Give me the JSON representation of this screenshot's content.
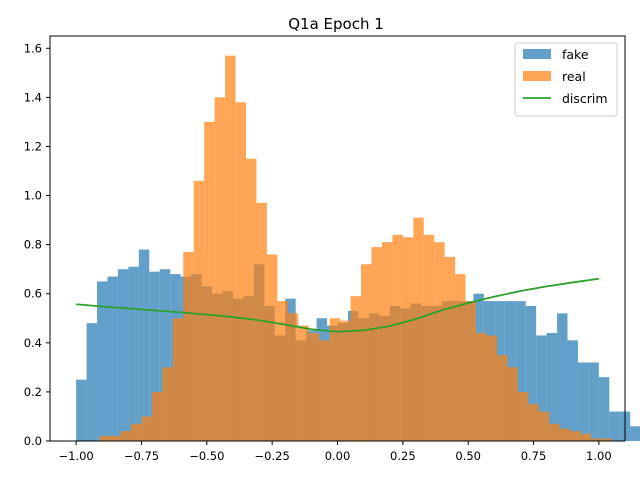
{
  "chart_data": {
    "type": "bar",
    "title": "Q1a Epoch 1",
    "xlabel": "",
    "ylabel": "",
    "xlim": [
      -1.1,
      1.1
    ],
    "ylim": [
      0,
      1.65
    ],
    "x_ticks": [
      -1.0,
      -0.75,
      -0.5,
      -0.25,
      0.0,
      0.25,
      0.5,
      0.75,
      1.0
    ],
    "x_tick_labels": [
      "−1.00",
      "−0.75",
      "−0.50",
      "−0.25",
      "0.00",
      "0.25",
      "0.50",
      "0.75",
      "1.00"
    ],
    "y_ticks": [
      0.0,
      0.2,
      0.4,
      0.6,
      0.8,
      1.0,
      1.2,
      1.4,
      1.6
    ],
    "y_tick_labels": [
      "0.0",
      "0.2",
      "0.4",
      "0.6",
      "0.8",
      "1.0",
      "1.2",
      "1.4",
      "1.6"
    ],
    "grid": false,
    "legend": {
      "location": "upper right"
    },
    "series": [
      {
        "name": "fake",
        "type": "histogram",
        "color": "#1f77b4",
        "alpha": 0.7,
        "bin_start": -1.0,
        "bin_width": 0.04,
        "values": [
          0.25,
          0.48,
          0.65,
          0.67,
          0.7,
          0.71,
          0.78,
          0.69,
          0.7,
          0.68,
          0.67,
          0.68,
          0.63,
          0.6,
          0.61,
          0.58,
          0.59,
          0.72,
          0.55,
          0.43,
          0.58,
          0.41,
          0.45,
          0.5,
          0.47,
          0.48,
          0.53,
          0.5,
          0.52,
          0.51,
          0.55,
          0.54,
          0.56,
          0.55,
          0.54,
          0.55,
          0.57,
          0.57,
          0.57,
          0.58,
          0.53,
          0.49,
          0.54,
          0.43,
          0.5,
          0.58,
          0.41,
          0.51,
          0.43,
          0.5,
          0.5,
          0.22,
          0.22,
          0.12,
          0.12,
          0.06,
          0.07,
          0.01,
          0.01,
          0.01
        ],
        "bin_overrides": {
          "34": 0.55,
          "35": 0.57,
          "36": 0.57,
          "37": 0.57,
          "38": 0.6,
          "39": 0.57,
          "40": 0.57,
          "41": 0.57,
          "42": 0.57,
          "43": 0.55,
          "44": 0.43,
          "45": 0.44,
          "46": 0.52,
          "47": 0.41,
          "48": 0.32,
          "49": 0.32,
          "50": 0.26,
          "51": 0.12,
          "52": 0.12,
          "53": 0.06,
          "54": 0.03,
          "55": 0.01
        }
      },
      {
        "name": "real",
        "type": "histogram",
        "color": "#ff7f0e",
        "alpha": 0.7,
        "bin_start": -0.95,
        "bin_width": 0.04,
        "values": [
          0.0,
          0.02,
          0.02,
          0.04,
          0.07,
          0.1,
          0.2,
          0.3,
          0.5,
          0.77,
          1.06,
          1.3,
          1.4,
          1.57,
          1.38,
          1.15,
          0.97,
          0.76,
          0.57,
          0.52,
          0.47,
          0.44,
          0.41,
          0.5,
          0.49,
          0.59,
          0.72,
          0.79,
          0.81,
          0.84,
          0.83,
          0.91,
          0.84,
          0.81,
          0.75,
          0.68,
          0.57,
          0.44,
          0.43,
          0.35,
          0.3,
          0.2,
          0.15,
          0.12,
          0.07,
          0.05,
          0.04,
          0.03,
          0.01,
          0.01
        ]
      },
      {
        "name": "discrim",
        "type": "line",
        "color": "#2ca02c",
        "x": [
          -1.0,
          -0.9,
          -0.8,
          -0.7,
          -0.6,
          -0.5,
          -0.4,
          -0.3,
          -0.2,
          -0.1,
          0.0,
          0.1,
          0.2,
          0.3,
          0.4,
          0.5,
          0.6,
          0.7,
          0.8,
          0.9,
          1.0
        ],
        "y": [
          0.557,
          0.548,
          0.54,
          0.532,
          0.524,
          0.515,
          0.505,
          0.492,
          0.474,
          0.455,
          0.445,
          0.451,
          0.468,
          0.497,
          0.533,
          0.562,
          0.588,
          0.611,
          0.63,
          0.646,
          0.661
        ]
      }
    ]
  }
}
